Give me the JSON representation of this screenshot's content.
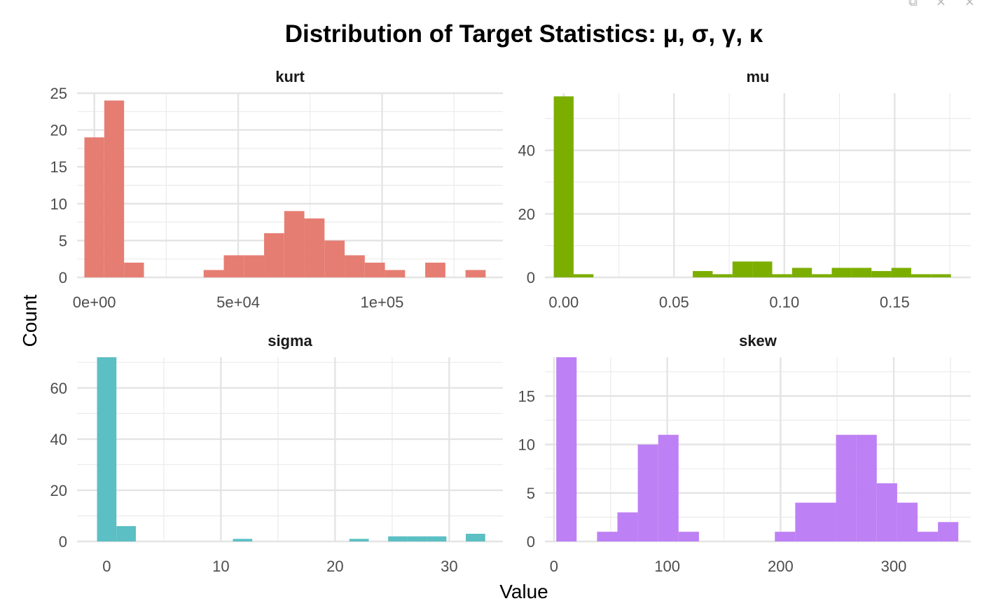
{
  "window_controls": {
    "popout_glyph": "⧉",
    "close_glyph": "×",
    "close2_glyph": "×"
  },
  "chart_data": {
    "type": "bar",
    "title": "Distribution of Target Statistics: μ, σ, γ, κ",
    "xlabel": "Value",
    "ylabel": "Count",
    "grid": true,
    "legend": "none",
    "panels": [
      {
        "name": "kurt",
        "color": "#E67D72",
        "xlim": [
          -6000,
          142000
        ],
        "ylim": [
          0,
          25
        ],
        "xticks": [
          {
            "value": 0,
            "label": "0e+00"
          },
          {
            "value": 50000,
            "label": "5e+04"
          },
          {
            "value": 100000,
            "label": "1e+05"
          }
        ],
        "yticks": [
          {
            "value": 0,
            "label": "0"
          },
          {
            "value": 5,
            "label": "5"
          },
          {
            "value": 10,
            "label": "10"
          },
          {
            "value": 15,
            "label": "15"
          },
          {
            "value": 20,
            "label": "20"
          },
          {
            "value": 25,
            "label": "25"
          }
        ],
        "bins": [
          {
            "x0": -3450,
            "x1": 3450,
            "count": 19
          },
          {
            "x0": 3450,
            "x1": 10350,
            "count": 24
          },
          {
            "x0": 10350,
            "x1": 17250,
            "count": 2
          },
          {
            "x0": 38000,
            "x1": 45000,
            "count": 1
          },
          {
            "x0": 45000,
            "x1": 52000,
            "count": 3
          },
          {
            "x0": 52000,
            "x1": 59000,
            "count": 3
          },
          {
            "x0": 59000,
            "x1": 66000,
            "count": 6
          },
          {
            "x0": 66000,
            "x1": 73000,
            "count": 9
          },
          {
            "x0": 73000,
            "x1": 80000,
            "count": 8
          },
          {
            "x0": 80000,
            "x1": 87000,
            "count": 5
          },
          {
            "x0": 87000,
            "x1": 94000,
            "count": 3
          },
          {
            "x0": 94000,
            "x1": 101000,
            "count": 2
          },
          {
            "x0": 101000,
            "x1": 108000,
            "count": 1
          },
          {
            "x0": 115000,
            "x1": 122000,
            "count": 2
          },
          {
            "x0": 129000,
            "x1": 136000,
            "count": 1
          }
        ]
      },
      {
        "name": "mu",
        "color": "#7CAE00",
        "xlim": [
          -0.0085,
          0.1845
        ],
        "ylim": [
          0,
          58
        ],
        "xticks": [
          {
            "value": 0,
            "label": "0.00"
          },
          {
            "value": 0.05,
            "label": "0.05"
          },
          {
            "value": 0.1,
            "label": "0.10"
          },
          {
            "value": 0.15,
            "label": "0.15"
          }
        ],
        "yticks": [
          {
            "value": 0,
            "label": "0"
          },
          {
            "value": 20,
            "label": "20"
          },
          {
            "value": 40,
            "label": "40"
          }
        ],
        "bins": [
          {
            "x0": -0.0045,
            "x1": 0.0045,
            "count": 57
          },
          {
            "x0": 0.0045,
            "x1": 0.0135,
            "count": 1
          },
          {
            "x0": 0.0585,
            "x1": 0.0675,
            "count": 2
          },
          {
            "x0": 0.0675,
            "x1": 0.0765,
            "count": 1
          },
          {
            "x0": 0.0765,
            "x1": 0.0855,
            "count": 5
          },
          {
            "x0": 0.0855,
            "x1": 0.0945,
            "count": 5
          },
          {
            "x0": 0.0945,
            "x1": 0.1035,
            "count": 1
          },
          {
            "x0": 0.1035,
            "x1": 0.1125,
            "count": 3
          },
          {
            "x0": 0.1125,
            "x1": 0.1215,
            "count": 1
          },
          {
            "x0": 0.1215,
            "x1": 0.1305,
            "count": 3
          },
          {
            "x0": 0.1305,
            "x1": 0.1395,
            "count": 3
          },
          {
            "x0": 0.1395,
            "x1": 0.1485,
            "count": 2
          },
          {
            "x0": 0.1485,
            "x1": 0.1575,
            "count": 3
          },
          {
            "x0": 0.1575,
            "x1": 0.1665,
            "count": 1
          },
          {
            "x0": 0.1665,
            "x1": 0.1755,
            "count": 1
          }
        ]
      },
      {
        "name": "sigma",
        "color": "#5BBFC4",
        "xlim": [
          -2.6,
          34.7
        ],
        "ylim": [
          0,
          72
        ],
        "xticks": [
          {
            "value": 0,
            "label": "0"
          },
          {
            "value": 10,
            "label": "10"
          },
          {
            "value": 20,
            "label": "20"
          },
          {
            "value": 30,
            "label": "30"
          }
        ],
        "yticks": [
          {
            "value": 0,
            "label": "0"
          },
          {
            "value": 20,
            "label": "20"
          },
          {
            "value": 40,
            "label": "40"
          },
          {
            "value": 60,
            "label": "60"
          }
        ],
        "bins": [
          {
            "x0": -0.85,
            "x1": 0.85,
            "count": 72
          },
          {
            "x0": 0.85,
            "x1": 2.55,
            "count": 6
          },
          {
            "x0": 11.05,
            "x1": 12.75,
            "count": 1
          },
          {
            "x0": 21.25,
            "x1": 22.95,
            "count": 1
          },
          {
            "x0": 24.65,
            "x1": 26.35,
            "count": 2
          },
          {
            "x0": 26.35,
            "x1": 28.05,
            "count": 2
          },
          {
            "x0": 28.05,
            "x1": 29.75,
            "count": 2
          },
          {
            "x0": 31.45,
            "x1": 33.15,
            "count": 3
          }
        ]
      },
      {
        "name": "skew",
        "color": "#BE80F5",
        "xlim": [
          -8,
          368
        ],
        "ylim": [
          0,
          19
        ],
        "xticks": [
          {
            "value": 0,
            "label": "0"
          },
          {
            "value": 100,
            "label": "100"
          },
          {
            "value": 200,
            "label": "200"
          },
          {
            "value": 300,
            "label": "300"
          }
        ],
        "yticks": [
          {
            "value": 0,
            "label": "0"
          },
          {
            "value": 5,
            "label": "5"
          },
          {
            "value": 10,
            "label": "10"
          },
          {
            "value": 15,
            "label": "15"
          }
        ],
        "bins": [
          {
            "x0": 2,
            "x1": 20,
            "count": 19
          },
          {
            "x0": 38,
            "x1": 56,
            "count": 1
          },
          {
            "x0": 56,
            "x1": 74,
            "count": 3
          },
          {
            "x0": 74,
            "x1": 92,
            "count": 10
          },
          {
            "x0": 92,
            "x1": 110,
            "count": 11
          },
          {
            "x0": 110,
            "x1": 128,
            "count": 1
          },
          {
            "x0": 195,
            "x1": 213,
            "count": 1
          },
          {
            "x0": 213,
            "x1": 231,
            "count": 4
          },
          {
            "x0": 231,
            "x1": 249,
            "count": 4
          },
          {
            "x0": 249,
            "x1": 267,
            "count": 11
          },
          {
            "x0": 267,
            "x1": 285,
            "count": 11
          },
          {
            "x0": 285,
            "x1": 303,
            "count": 6
          },
          {
            "x0": 303,
            "x1": 321,
            "count": 4
          },
          {
            "x0": 321,
            "x1": 339,
            "count": 1
          },
          {
            "x0": 339,
            "x1": 357,
            "count": 2
          }
        ]
      }
    ]
  }
}
